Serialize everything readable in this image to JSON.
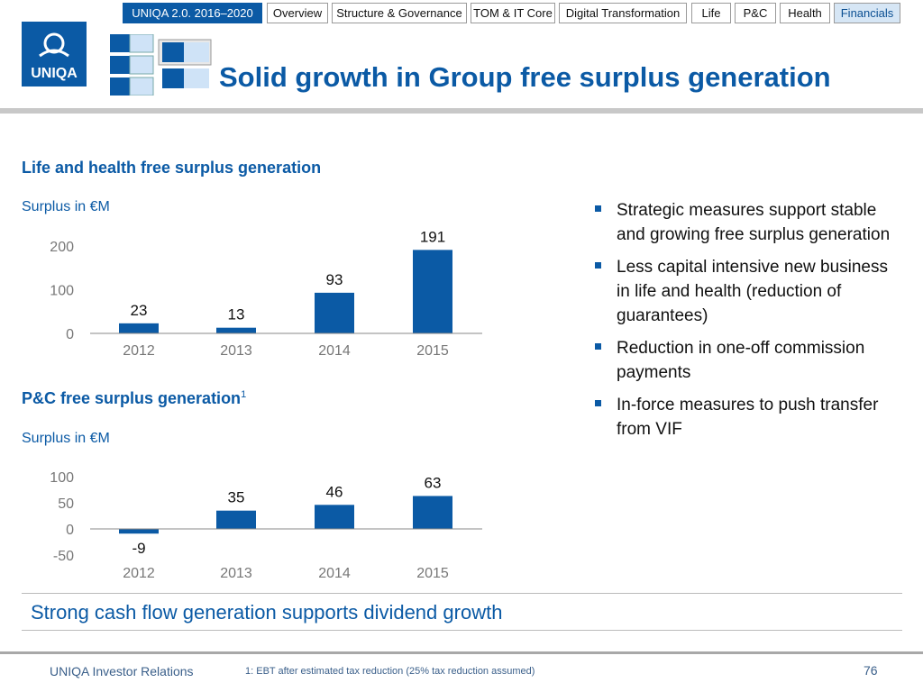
{
  "nav": {
    "primary": "UNIQA 2.0. 2016–2020",
    "tabs": [
      "Overview",
      "Structure & Governance",
      "TOM & IT Core",
      "Digital Transformation",
      "Life",
      "P&C",
      "Health",
      "Financials"
    ],
    "active": "Financials"
  },
  "logo": {
    "text": "UNIQA"
  },
  "title": "Solid growth in Group free surplus generation",
  "colors": {
    "accent": "#0b5aa5",
    "bar": "#0b5aa5"
  },
  "chart_data": [
    {
      "type": "bar",
      "title": "Life and health free surplus generation",
      "ylabel": "Surplus in €M",
      "categories": [
        "2012",
        "2013",
        "2014",
        "2015"
      ],
      "values": [
        23,
        13,
        93,
        191
      ],
      "yticks": [
        "0",
        "100",
        "200"
      ],
      "ylim": [
        0,
        200
      ],
      "grid": false
    },
    {
      "type": "bar",
      "title": "P&C free surplus generation",
      "title_sup": "1",
      "ylabel": "Surplus in €M",
      "categories": [
        "2012",
        "2013",
        "2014",
        "2015"
      ],
      "values": [
        -9,
        35,
        46,
        63
      ],
      "yticks": [
        "-50",
        "0",
        "50",
        "100"
      ],
      "ylim": [
        -50,
        100
      ],
      "grid": false
    }
  ],
  "bullets": [
    "Strategic measures support stable and growing free surplus generation",
    "Less capital intensive new business in life and health (reduction of guarantees)",
    "Reduction in one-off commission payments",
    "In-force measures to push transfer from VIF"
  ],
  "conclusion": "Strong cash flow generation supports dividend growth",
  "footer": {
    "left": "UNIQA Investor Relations",
    "footnote": "1: EBT after estimated tax reduction (25% tax reduction assumed)",
    "page": "76"
  }
}
